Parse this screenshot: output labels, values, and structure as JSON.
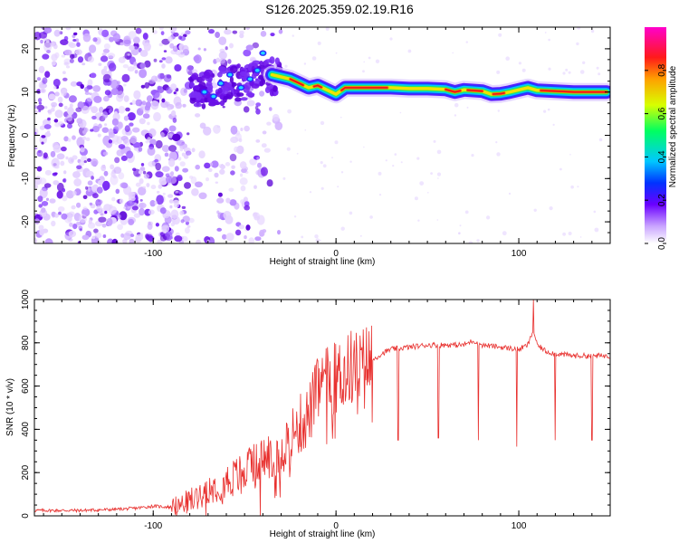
{
  "title": "S126.2025.359.02.19.R16",
  "chart_data": [
    {
      "type": "heatmap",
      "xlabel": "Height of straight line (km)",
      "ylabel": "Frequency (Hz)",
      "xlim": [
        -165,
        150
      ],
      "ylim": [
        -25,
        25
      ],
      "x_ticks": [
        -100,
        0,
        100
      ],
      "y_ticks": [
        -20,
        -10,
        0,
        10,
        20
      ],
      "colorbar": {
        "label": "Normalized spectral amplitude",
        "range": [
          0,
          1
        ],
        "ticks": [
          0.0,
          0.2,
          0.4,
          0.6,
          0.8
        ]
      },
      "ridge": {
        "x": [
          -35,
          -25,
          -20,
          -15,
          -10,
          -5,
          0,
          5,
          10,
          20,
          30,
          40,
          50,
          60,
          65,
          70,
          80,
          85,
          90,
          95,
          100,
          105,
          110,
          120,
          130,
          140,
          148
        ],
        "y": [
          14,
          13,
          12,
          11,
          11.5,
          10.5,
          9.5,
          11,
          11,
          11,
          11,
          10.8,
          10.8,
          10.6,
          10,
          10.5,
          10.2,
          9.5,
          9.6,
          10,
          10.5,
          11,
          10.4,
          10.2,
          10,
          10,
          10
        ]
      }
    },
    {
      "type": "line",
      "xlabel": "Height of straight line (km)",
      "ylabel": "SNR (10 * v/v)",
      "xlim": [
        -165,
        150
      ],
      "ylim": [
        0,
        1000
      ],
      "x_ticks": [
        -100,
        0,
        100
      ],
      "y_ticks": [
        0,
        200,
        400,
        600,
        800,
        1000
      ],
      "color": "#e8302e",
      "series": [
        {
          "x": [
            -165,
            -140,
            -120,
            -110,
            -100,
            -90,
            -85,
            -80,
            -75,
            -70,
            -65,
            -60,
            -55,
            -50,
            -45,
            -40,
            -35,
            -30,
            -25,
            -20,
            -15,
            -12,
            -10,
            -5,
            0,
            5,
            10,
            12,
            15,
            20,
            25,
            30,
            40,
            50,
            60,
            70,
            75,
            80,
            90,
            100,
            105,
            108,
            110,
            115,
            120,
            130,
            140,
            150
          ],
          "y": [
            25,
            25,
            30,
            35,
            45,
            40,
            50,
            70,
            100,
            130,
            140,
            160,
            180,
            200,
            230,
            260,
            280,
            310,
            360,
            420,
            460,
            540,
            580,
            620,
            640,
            660,
            700,
            660,
            690,
            720,
            750,
            770,
            780,
            790,
            790,
            790,
            810,
            790,
            780,
            770,
            790,
            860,
            790,
            760,
            750,
            740,
            740,
            740
          ]
        }
      ],
      "dips": [
        {
          "x": 34,
          "y": 350
        },
        {
          "x": 56,
          "y": 360
        },
        {
          "x": 78,
          "y": 350
        },
        {
          "x": 99,
          "y": 320
        },
        {
          "x": 120,
          "y": 350
        },
        {
          "x": 140,
          "y": 350
        }
      ],
      "spike": {
        "x": 108,
        "y": 1000
      }
    }
  ]
}
